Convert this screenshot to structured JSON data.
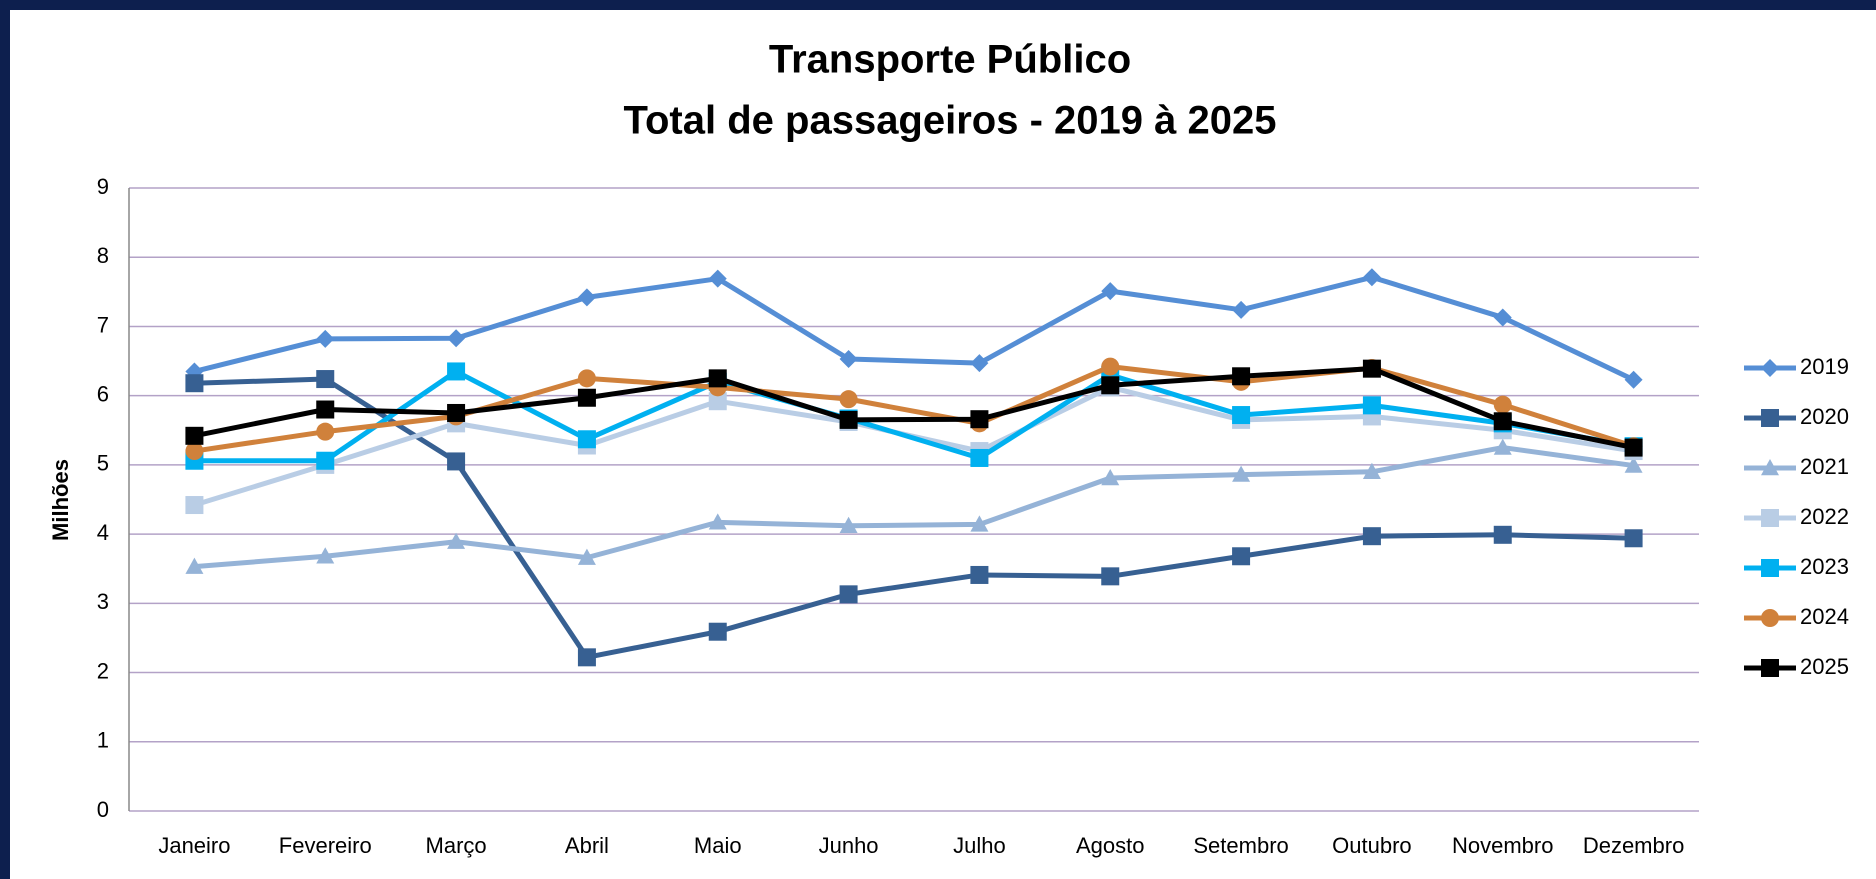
{
  "chart_data": {
    "type": "line",
    "title": [
      "Transporte Público",
      "Total de passageiros - 2019 à 2025"
    ],
    "y_label": "Milhões",
    "categories": [
      "Janeiro",
      "Fevereiro",
      "Março",
      "Abril",
      "Maio",
      "Junho",
      "Julho",
      "Agosto",
      "Setembro",
      "Outubro",
      "Novembro",
      "Dezembro"
    ],
    "series": [
      {
        "name": "2019",
        "color": "#558ed5",
        "marker": "diamond",
        "values": [
          6.35,
          6.82,
          6.83,
          7.42,
          7.69,
          6.53,
          6.47,
          7.51,
          7.24,
          7.71,
          7.13,
          6.23
        ]
      },
      {
        "name": "2020",
        "color": "#376092",
        "marker": "square",
        "values": [
          6.18,
          6.24,
          5.05,
          2.22,
          2.59,
          3.13,
          3.41,
          3.39,
          3.68,
          3.97,
          3.99,
          3.94
        ]
      },
      {
        "name": "2021",
        "color": "#95b3d7",
        "marker": "triangle",
        "values": [
          3.53,
          3.68,
          3.89,
          3.66,
          4.17,
          4.12,
          4.14,
          4.81,
          4.86,
          4.9,
          5.25,
          4.99
        ]
      },
      {
        "name": "2022",
        "color": "#b9cde5",
        "marker": "square",
        "values": [
          4.42,
          5.0,
          5.6,
          5.28,
          5.92,
          5.62,
          5.2,
          6.12,
          5.65,
          5.7,
          5.5,
          5.2
        ]
      },
      {
        "name": "2023",
        "color": "#00b0f0",
        "marker": "square",
        "values": [
          5.06,
          5.06,
          6.35,
          5.37,
          6.2,
          5.67,
          5.1,
          6.3,
          5.72,
          5.86,
          5.6,
          5.27
        ]
      },
      {
        "name": "2024",
        "color": "#d0813b",
        "marker": "circle",
        "values": [
          5.2,
          5.48,
          5.7,
          6.25,
          6.12,
          5.95,
          5.6,
          6.42,
          6.2,
          6.4,
          5.87,
          5.27
        ]
      },
      {
        "name": "2025",
        "color": "#000000",
        "marker": "square",
        "values": [
          5.42,
          5.8,
          5.75,
          5.97,
          6.25,
          5.65,
          5.66,
          6.15,
          6.28,
          6.39,
          5.63,
          5.25
        ]
      }
    ],
    "ylim": [
      0,
      9
    ],
    "yticks": [
      0,
      1,
      2,
      3,
      4,
      5,
      6,
      7,
      8,
      9
    ],
    "grid": true,
    "grid_color": "#b3a2c7",
    "legend": "right"
  }
}
